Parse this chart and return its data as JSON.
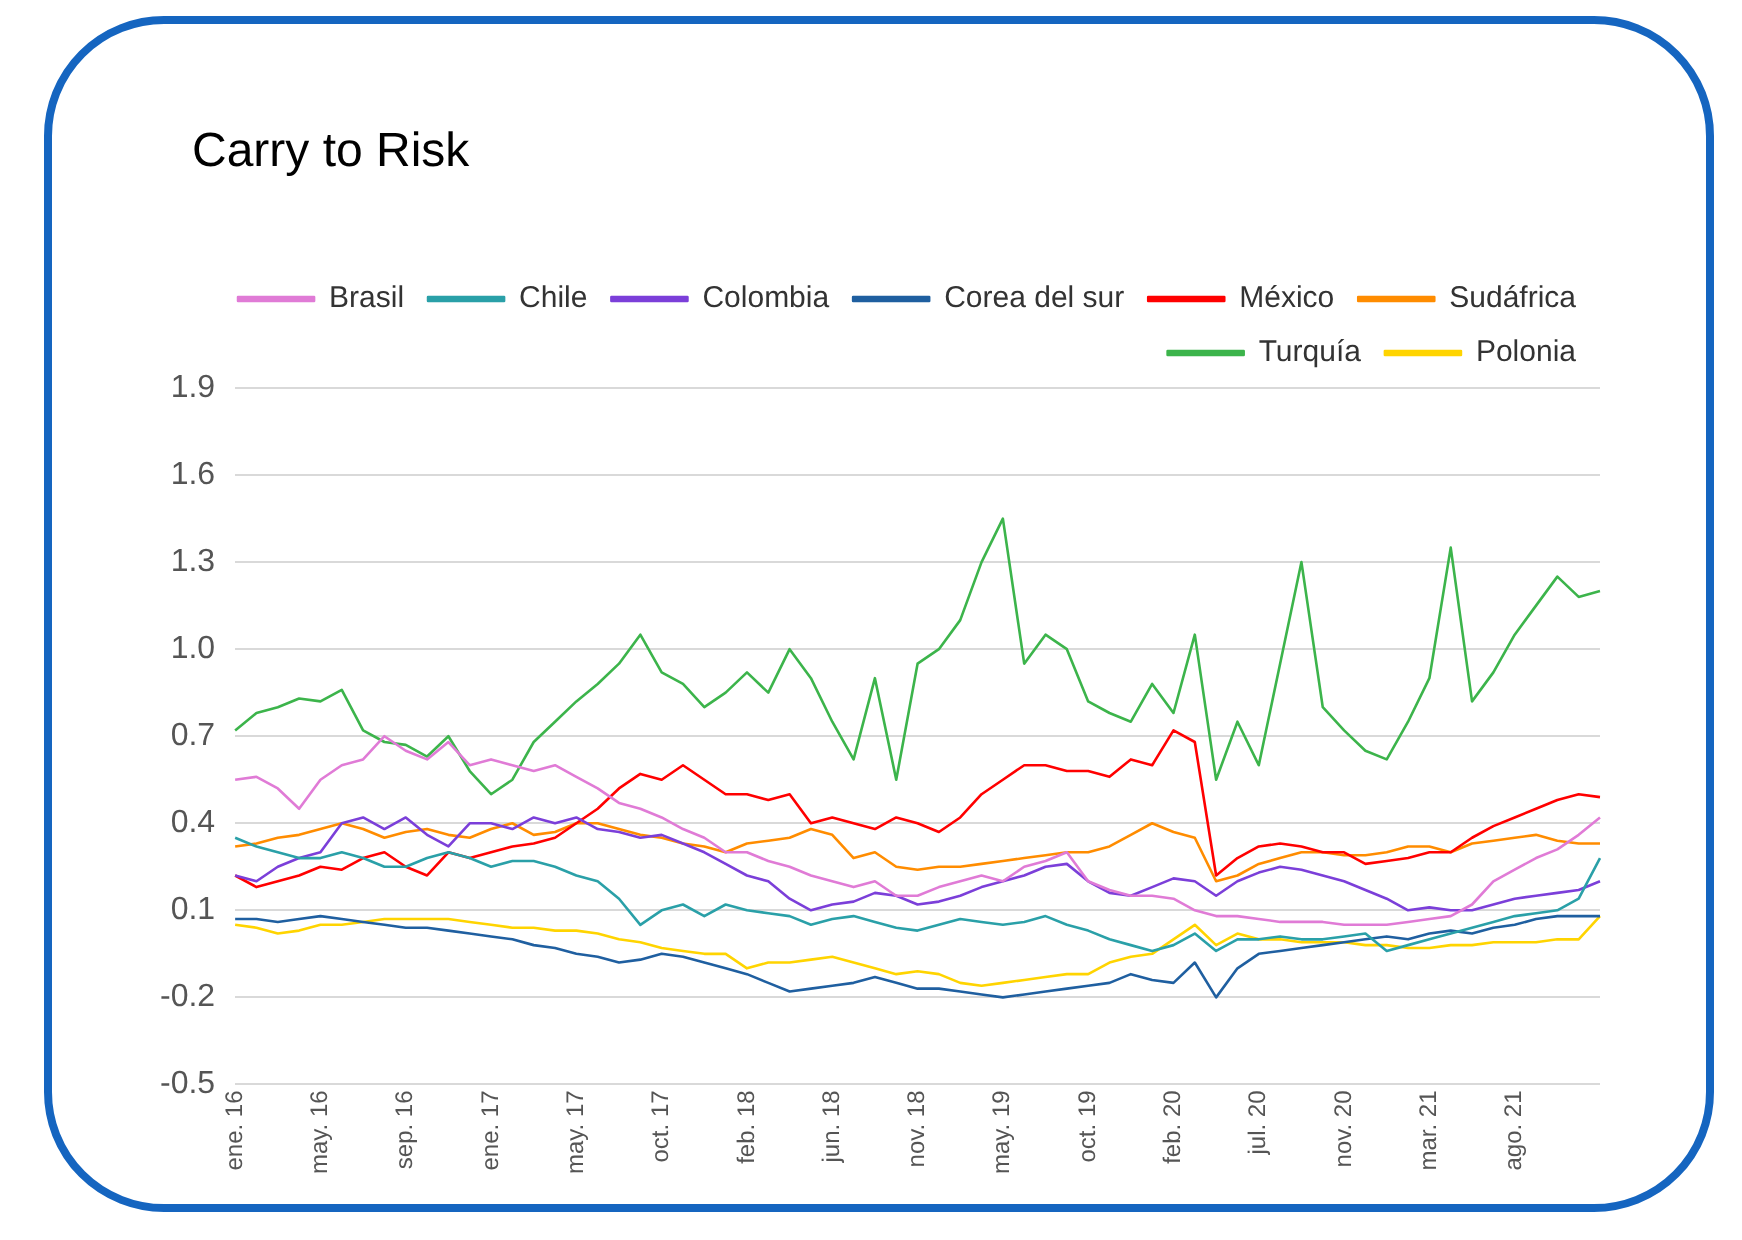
{
  "chart_data": {
    "type": "line",
    "title": "Carry to Risk",
    "categories": [
      "ene. 16",
      null,
      null,
      null,
      "may. 16",
      null,
      null,
      null,
      "sep. 16",
      null,
      null,
      null,
      "ene. 17",
      null,
      null,
      null,
      "may. 17",
      null,
      null,
      null,
      "oct. 17",
      null,
      null,
      null,
      "feb. 18",
      null,
      null,
      null,
      "jun. 18",
      null,
      null,
      null,
      "nov. 18",
      null,
      null,
      null,
      "may. 19",
      null,
      null,
      null,
      "oct. 19",
      null,
      null,
      null,
      "feb. 20",
      null,
      null,
      null,
      "jul. 20",
      null,
      null,
      null,
      "nov. 20",
      null,
      null,
      null,
      "mar. 21",
      null,
      null,
      null,
      "ago. 21",
      null,
      null,
      null,
      null
    ],
    "series": [
      {
        "name": "Brasil",
        "color": "#e07bd6",
        "values": [
          0.55,
          0.56,
          0.52,
          0.45,
          0.55,
          0.6,
          0.62,
          0.7,
          0.65,
          0.62,
          0.68,
          0.6,
          0.62,
          0.6,
          0.58,
          0.6,
          0.56,
          0.52,
          0.47,
          0.45,
          0.42,
          0.38,
          0.35,
          0.3,
          0.3,
          0.27,
          0.25,
          0.22,
          0.2,
          0.18,
          0.2,
          0.15,
          0.15,
          0.18,
          0.2,
          0.22,
          0.2,
          0.25,
          0.27,
          0.3,
          0.2,
          0.17,
          0.15,
          0.15,
          0.14,
          0.1,
          0.08,
          0.08,
          0.07,
          0.06,
          0.06,
          0.06,
          0.05,
          0.05,
          0.05,
          0.06,
          0.07,
          0.08,
          0.12,
          0.2,
          0.24,
          0.28,
          0.31,
          0.36,
          0.42
        ]
      },
      {
        "name": "Chile",
        "color": "#2aa0a8",
        "values": [
          0.35,
          0.32,
          0.3,
          0.28,
          0.28,
          0.3,
          0.28,
          0.25,
          0.25,
          0.28,
          0.3,
          0.28,
          0.25,
          0.27,
          0.27,
          0.25,
          0.22,
          0.2,
          0.14,
          0.05,
          0.1,
          0.12,
          0.08,
          0.12,
          0.1,
          0.09,
          0.08,
          0.05,
          0.07,
          0.08,
          0.06,
          0.04,
          0.03,
          0.05,
          0.07,
          0.06,
          0.05,
          0.06,
          0.08,
          0.05,
          0.03,
          0,
          -0.02,
          -0.04,
          -0.02,
          0.02,
          -0.04,
          0,
          0,
          0.01,
          0,
          0,
          0.01,
          0.02,
          -0.04,
          -0.02,
          0,
          0.02,
          0.04,
          0.06,
          0.08,
          0.09,
          0.1,
          0.14,
          0.28
        ]
      },
      {
        "name": "Colombia",
        "color": "#7b3fd9",
        "values": [
          0.22,
          0.2,
          0.25,
          0.28,
          0.3,
          0.4,
          0.42,
          0.38,
          0.42,
          0.36,
          0.32,
          0.4,
          0.4,
          0.38,
          0.42,
          0.4,
          0.42,
          0.38,
          0.37,
          0.35,
          0.36,
          0.33,
          0.3,
          0.26,
          0.22,
          0.2,
          0.14,
          0.1,
          0.12,
          0.13,
          0.16,
          0.15,
          0.12,
          0.13,
          0.15,
          0.18,
          0.2,
          0.22,
          0.25,
          0.26,
          0.2,
          0.16,
          0.15,
          0.18,
          0.21,
          0.2,
          0.15,
          0.2,
          0.23,
          0.25,
          0.24,
          0.22,
          0.2,
          0.17,
          0.14,
          0.1,
          0.11,
          0.1,
          0.1,
          0.12,
          0.14,
          0.15,
          0.16,
          0.17,
          0.2
        ]
      },
      {
        "name": "Corea del sur",
        "color": "#1f5fa0",
        "values": [
          0.07,
          0.07,
          0.06,
          0.07,
          0.08,
          0.07,
          0.06,
          0.05,
          0.04,
          0.04,
          0.03,
          0.02,
          0.01,
          0,
          -0.02,
          -0.03,
          -0.05,
          -0.06,
          -0.08,
          -0.07,
          -0.05,
          -0.06,
          -0.08,
          -0.1,
          -0.12,
          -0.15,
          -0.18,
          -0.17,
          -0.16,
          -0.15,
          -0.13,
          -0.15,
          -0.17,
          -0.17,
          -0.18,
          -0.19,
          -0.2,
          -0.19,
          -0.18,
          -0.17,
          -0.16,
          -0.15,
          -0.12,
          -0.14,
          -0.15,
          -0.08,
          -0.2,
          -0.1,
          -0.05,
          -0.04,
          -0.03,
          -0.02,
          -0.01,
          0,
          0.01,
          0,
          0.02,
          0.03,
          0.02,
          0.04,
          0.05,
          0.07,
          0.08,
          0.08,
          0.08
        ]
      },
      {
        "name": "México",
        "color": "#ff0000",
        "values": [
          0.22,
          0.18,
          0.2,
          0.22,
          0.25,
          0.24,
          0.28,
          0.3,
          0.25,
          0.22,
          0.3,
          0.28,
          0.3,
          0.32,
          0.33,
          0.35,
          0.4,
          0.45,
          0.52,
          0.57,
          0.55,
          0.6,
          0.55,
          0.5,
          0.5,
          0.48,
          0.5,
          0.4,
          0.42,
          0.4,
          0.38,
          0.42,
          0.4,
          0.37,
          0.42,
          0.5,
          0.55,
          0.6,
          0.6,
          0.58,
          0.58,
          0.56,
          0.62,
          0.6,
          0.72,
          0.68,
          0.22,
          0.28,
          0.32,
          0.33,
          0.32,
          0.3,
          0.3,
          0.26,
          0.27,
          0.28,
          0.3,
          0.3,
          0.35,
          0.39,
          0.42,
          0.45,
          0.48,
          0.5,
          0.49
        ]
      },
      {
        "name": "Sudáfrica",
        "color": "#ff8c00",
        "values": [
          0.32,
          0.33,
          0.35,
          0.36,
          0.38,
          0.4,
          0.38,
          0.35,
          0.37,
          0.38,
          0.36,
          0.35,
          0.38,
          0.4,
          0.36,
          0.37,
          0.4,
          0.4,
          0.38,
          0.36,
          0.35,
          0.33,
          0.32,
          0.3,
          0.33,
          0.34,
          0.35,
          0.38,
          0.36,
          0.28,
          0.3,
          0.25,
          0.24,
          0.25,
          0.25,
          0.26,
          0.27,
          0.28,
          0.29,
          0.3,
          0.3,
          0.32,
          0.36,
          0.4,
          0.37,
          0.35,
          0.2,
          0.22,
          0.26,
          0.28,
          0.3,
          0.3,
          0.29,
          0.29,
          0.3,
          0.32,
          0.32,
          0.3,
          0.33,
          0.34,
          0.35,
          0.36,
          0.34,
          0.33,
          0.33
        ]
      },
      {
        "name": "Turquía",
        "color": "#3cb44b",
        "values": [
          0.72,
          0.78,
          0.8,
          0.83,
          0.82,
          0.86,
          0.72,
          0.68,
          0.67,
          0.63,
          0.7,
          0.58,
          0.5,
          0.55,
          0.68,
          0.75,
          0.82,
          0.88,
          0.95,
          1.05,
          0.92,
          0.88,
          0.8,
          0.85,
          0.92,
          0.85,
          1,
          0.9,
          0.75,
          0.62,
          0.9,
          0.55,
          0.95,
          1,
          1.1,
          1.3,
          1.45,
          0.95,
          1.05,
          1,
          0.82,
          0.78,
          0.75,
          0.88,
          0.78,
          1.05,
          0.55,
          0.75,
          0.6,
          0.95,
          1.3,
          0.8,
          0.72,
          0.65,
          0.62,
          0.75,
          0.9,
          1.35,
          0.82,
          0.92,
          1.05,
          1.15,
          1.25,
          1.18,
          1.2
        ]
      },
      {
        "name": "Polonia",
        "color": "#ffd400",
        "values": [
          0.05,
          0.04,
          0.02,
          0.03,
          0.05,
          0.05,
          0.06,
          0.07,
          0.07,
          0.07,
          0.07,
          0.06,
          0.05,
          0.04,
          0.04,
          0.03,
          0.03,
          0.02,
          0,
          -0.01,
          -0.03,
          -0.04,
          -0.05,
          -0.05,
          -0.1,
          -0.08,
          -0.08,
          -0.07,
          -0.06,
          -0.08,
          -0.1,
          -0.12,
          -0.11,
          -0.12,
          -0.15,
          -0.16,
          -0.15,
          -0.14,
          -0.13,
          -0.12,
          -0.12,
          -0.08,
          -0.06,
          -0.05,
          0,
          0.05,
          -0.02,
          0.02,
          0,
          0,
          -0.01,
          -0.01,
          -0.01,
          -0.02,
          -0.02,
          -0.03,
          -0.03,
          -0.02,
          -0.02,
          -0.01,
          -0.01,
          -0.01,
          0,
          0,
          0.08
        ]
      }
    ],
    "ylim": [
      -0.5,
      1.9
    ],
    "yticks": [
      -0.5,
      -0.2,
      0.1,
      0.4,
      0.7,
      {
        "value": 1,
        "label": "1.0"
      },
      1.3,
      1.6,
      1.9
    ],
    "grid": "y",
    "legend": "top",
    "marker": "none",
    "line_style": "solid"
  }
}
